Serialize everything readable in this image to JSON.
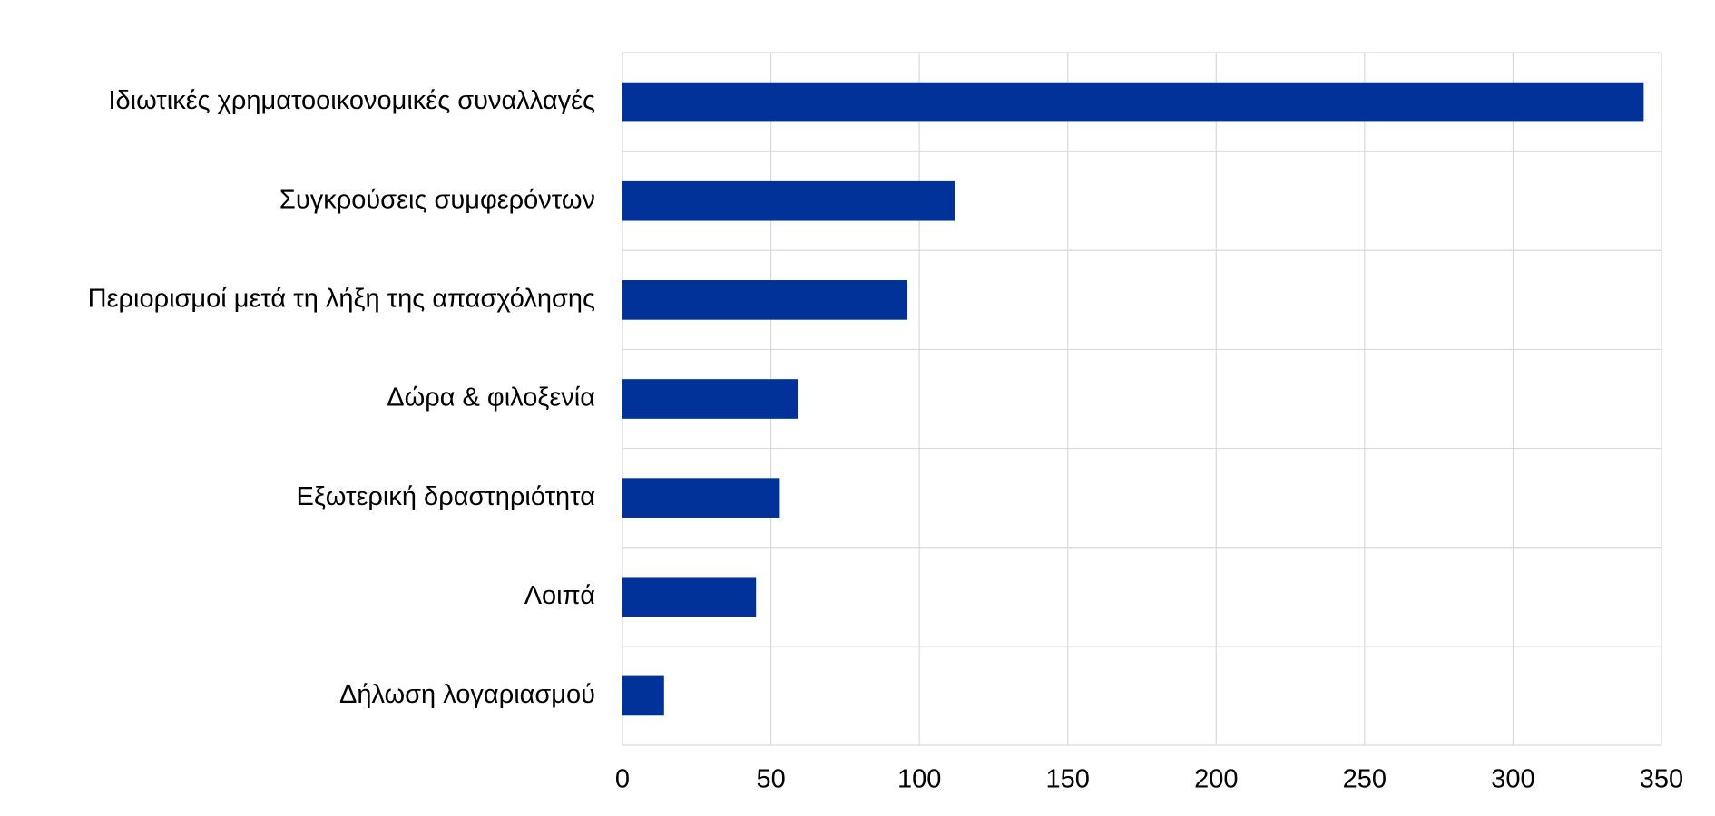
{
  "chart_data": {
    "type": "hbar",
    "categories": [
      "Ιδιωτικές χρηματοοικονομικές συναλλαγές",
      "Συγκρούσεις συμφερόντων",
      "Περιορισμοί μετά τη λήξη της απασχόλησης",
      "Δώρα & φιλοξενία",
      "Εξωτερική δραστηριότητα",
      "Λοιπά",
      "Δήλωση λογαριασμού"
    ],
    "values": [
      344,
      112,
      96,
      59,
      53,
      45,
      14
    ],
    "color": "#003299",
    "xlim": [
      0,
      350
    ],
    "xticks": [
      0,
      50,
      100,
      150,
      200,
      250,
      300,
      350
    ],
    "grid": true
  }
}
